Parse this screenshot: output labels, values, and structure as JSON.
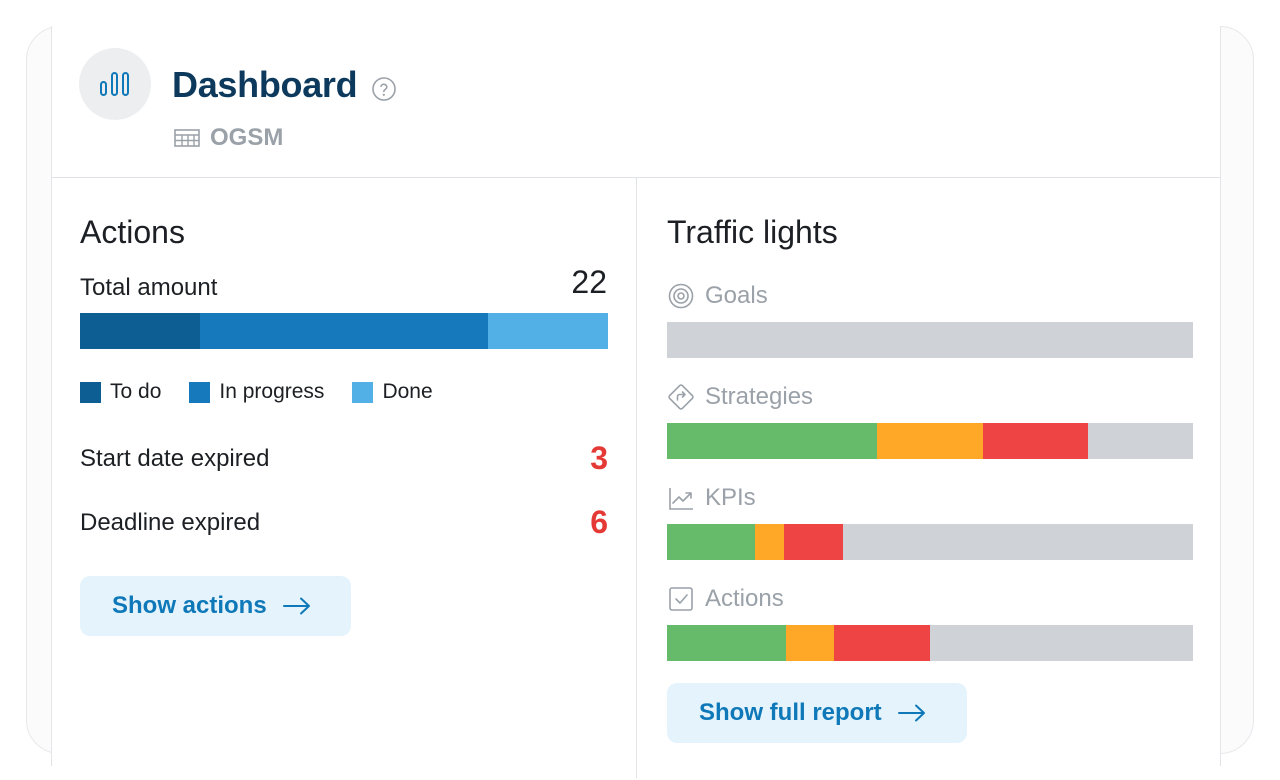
{
  "header": {
    "title": "Dashboard",
    "subtitle": "OGSM"
  },
  "actions": {
    "title": "Actions",
    "total_label": "Total amount",
    "total_value": "22",
    "distribution": [
      {
        "label": "To do",
        "fraction": 0.227,
        "color": "#0d5e92"
      },
      {
        "label": "In progress",
        "fraction": 0.546,
        "color": "#1579bb"
      },
      {
        "label": "Done",
        "fraction": 0.227,
        "color": "#52b0e6"
      }
    ],
    "start_date_label": "Start date expired",
    "start_date_value": "3",
    "deadline_label": "Deadline expired",
    "deadline_value": "6",
    "button_label": "Show actions"
  },
  "traffic": {
    "title": "Traffic lights",
    "rows": [
      {
        "label": "Goals",
        "icon": "target-icon",
        "green": 0,
        "orange": 0,
        "red": 0
      },
      {
        "label": "Strategies",
        "icon": "direction-sign-icon",
        "green": 0.4,
        "orange": 0.2,
        "red": 0.2
      },
      {
        "label": "KPIs",
        "icon": "trend-chart-icon",
        "green": 0.167,
        "orange": 0.056,
        "red": 0.111
      },
      {
        "label": "Actions",
        "icon": "checkbox-icon",
        "green": 0.227,
        "orange": 0.091,
        "red": 0.182
      }
    ],
    "button_label": "Show full report"
  },
  "colors": {
    "green": "#66bb6a",
    "orange": "#ffa726",
    "red": "#ef4444",
    "grey": "#cfd3d7",
    "accent": "#0f78b8"
  }
}
